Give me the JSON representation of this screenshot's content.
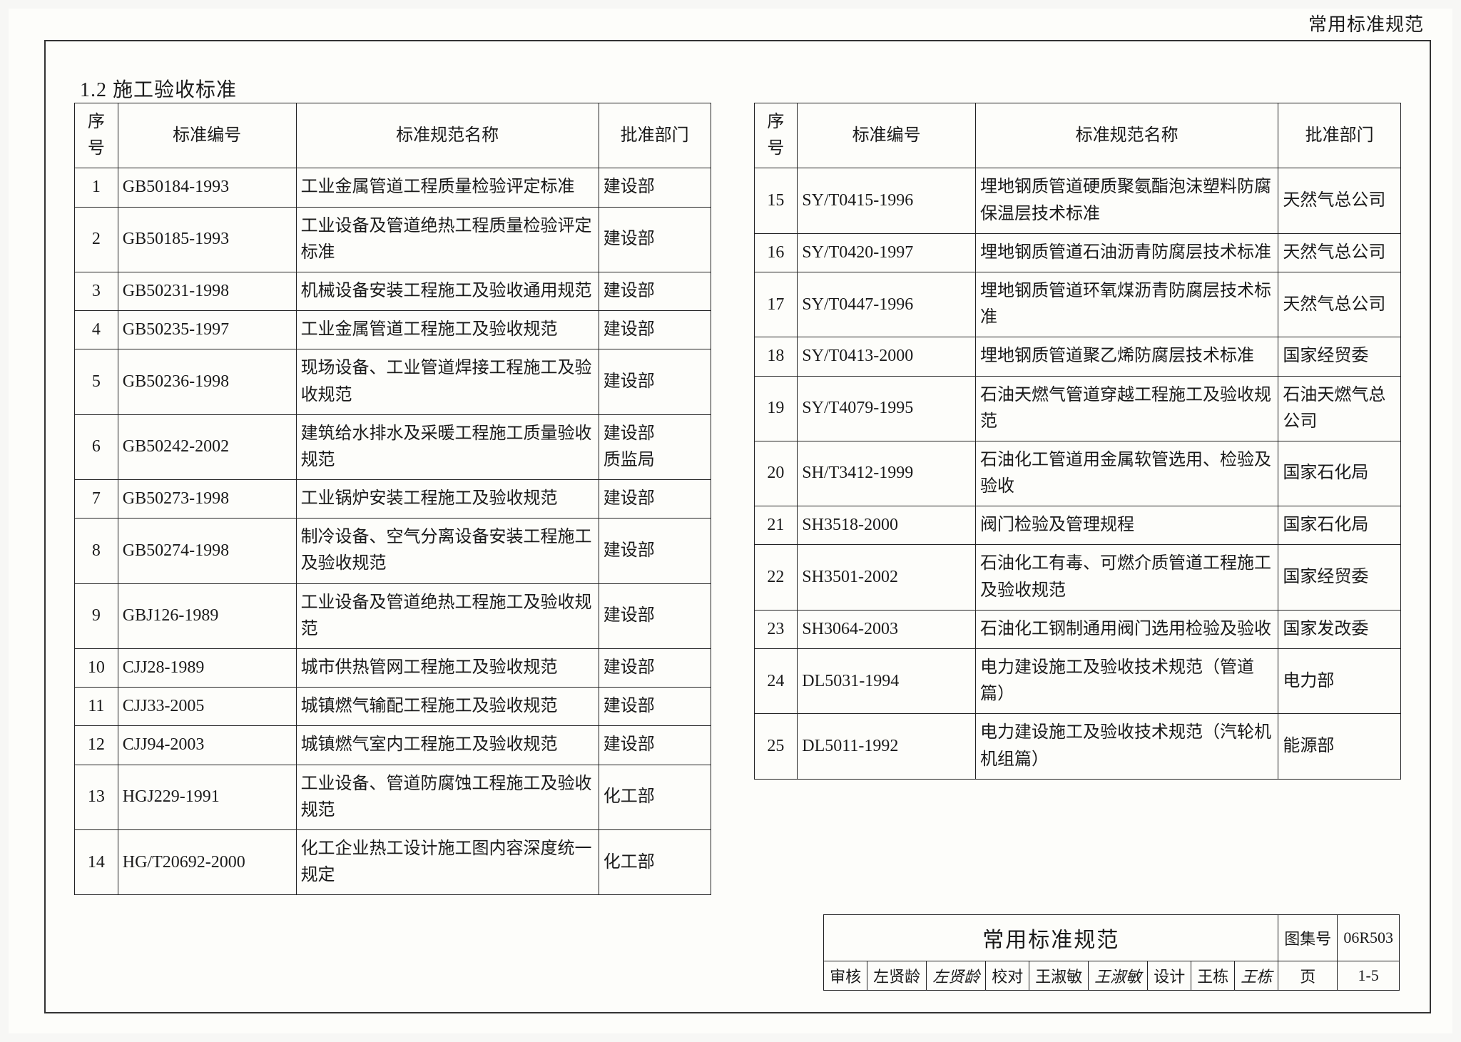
{
  "top_right_title": "常用标准规范",
  "section_heading": "1.2  施工验收标准",
  "columns": [
    "序号",
    "标准编号",
    "标准规范名称",
    "批准部门"
  ],
  "left_rows": [
    {
      "seq": "1",
      "code": "GB50184-1993",
      "name": "工业金属管道工程质量检验评定标准",
      "dept": "建设部"
    },
    {
      "seq": "2",
      "code": "GB50185-1993",
      "name": "工业设备及管道绝热工程质量检验评定标准",
      "dept": "建设部"
    },
    {
      "seq": "3",
      "code": "GB50231-1998",
      "name": "机械设备安装工程施工及验收通用规范",
      "dept": "建设部"
    },
    {
      "seq": "4",
      "code": "GB50235-1997",
      "name": "工业金属管道工程施工及验收规范",
      "dept": "建设部"
    },
    {
      "seq": "5",
      "code": "GB50236-1998",
      "name": "现场设备、工业管道焊接工程施工及验收规范",
      "dept": "建设部"
    },
    {
      "seq": "6",
      "code": "GB50242-2002",
      "name": "建筑给水排水及采暖工程施工质量验收规范",
      "dept": "建设部\n质监局"
    },
    {
      "seq": "7",
      "code": "GB50273-1998",
      "name": "工业锅炉安装工程施工及验收规范",
      "dept": "建设部"
    },
    {
      "seq": "8",
      "code": "GB50274-1998",
      "name": "制冷设备、空气分离设备安装工程施工及验收规范",
      "dept": "建设部"
    },
    {
      "seq": "9",
      "code": "GBJ126-1989",
      "name": "工业设备及管道绝热工程施工及验收规范",
      "dept": "建设部"
    },
    {
      "seq": "10",
      "code": "CJJ28-1989",
      "name": "城市供热管网工程施工及验收规范",
      "dept": "建设部"
    },
    {
      "seq": "11",
      "code": "CJJ33-2005",
      "name": "城镇燃气输配工程施工及验收规范",
      "dept": "建设部"
    },
    {
      "seq": "12",
      "code": "CJJ94-2003",
      "name": "城镇燃气室内工程施工及验收规范",
      "dept": "建设部"
    },
    {
      "seq": "13",
      "code": "HGJ229-1991",
      "name": "工业设备、管道防腐蚀工程施工及验收规范",
      "dept": "化工部"
    },
    {
      "seq": "14",
      "code": "HG/T20692-2000",
      "name": "化工企业热工设计施工图内容深度统一规定",
      "dept": "化工部"
    }
  ],
  "right_rows": [
    {
      "seq": "15",
      "code": "SY/T0415-1996",
      "name": "埋地钢质管道硬质聚氨酯泡沫塑料防腐保温层技术标准",
      "dept": "天然气总公司"
    },
    {
      "seq": "16",
      "code": "SY/T0420-1997",
      "name": "埋地钢质管道石油沥青防腐层技术标准",
      "dept": "天然气总公司"
    },
    {
      "seq": "17",
      "code": "SY/T0447-1996",
      "name": "埋地钢质管道环氧煤沥青防腐层技术标准",
      "dept": "天然气总公司"
    },
    {
      "seq": "18",
      "code": "SY/T0413-2000",
      "name": "埋地钢质管道聚乙烯防腐层技术标准",
      "dept": "国家经贸委"
    },
    {
      "seq": "19",
      "code": "SY/T4079-1995",
      "name": "石油天燃气管道穿越工程施工及验收规范",
      "dept": "石油天燃气总公司"
    },
    {
      "seq": "20",
      "code": "SH/T3412-1999",
      "name": "石油化工管道用金属软管选用、检验及验收",
      "dept": "国家石化局"
    },
    {
      "seq": "21",
      "code": "SH3518-2000",
      "name": "阀门检验及管理规程",
      "dept": "国家石化局"
    },
    {
      "seq": "22",
      "code": "SH3501-2002",
      "name": "石油化工有毒、可燃介质管道工程施工及验收规范",
      "dept": "国家经贸委"
    },
    {
      "seq": "23",
      "code": "SH3064-2003",
      "name": "石油化工钢制通用阀门选用检验及验收",
      "dept": "国家发改委"
    },
    {
      "seq": "24",
      "code": "DL5031-1994",
      "name": "电力建设施工及验收技术规范（管道篇）",
      "dept": "电力部"
    },
    {
      "seq": "25",
      "code": "DL5011-1992",
      "name": "电力建设施工及验收技术规范（汽轮机机组篇）",
      "dept": "能源部"
    }
  ],
  "titleblock": {
    "title": "常用标准规范",
    "atlas_label": "图集号",
    "atlas_no": "06R503",
    "row2": {
      "review_label": "审核",
      "review_name": "左贤龄",
      "review_sig": "左贤龄",
      "check_label": "校对",
      "check_name": "王淑敏",
      "check_sig": "王淑敏",
      "design_label": "设计",
      "design_name": "王栋",
      "design_sig": "王栋",
      "page_label": "页",
      "page_no": "1-5"
    }
  },
  "colors": {
    "text": "#1a1a1a",
    "border": "#222222",
    "paper": "#fdfdfa"
  }
}
